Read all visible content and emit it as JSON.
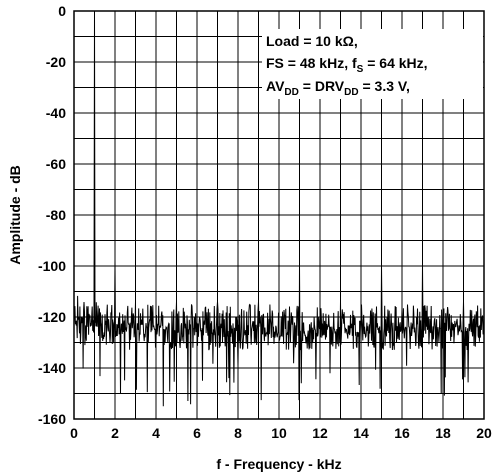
{
  "chart_data": {
    "type": "line",
    "title": "",
    "xlabel": "f - Frequency - kHz",
    "ylabel": "Amplitude - dB",
    "xlim": [
      0,
      20
    ],
    "ylim": [
      -160,
      0
    ],
    "x_ticks": [
      "0",
      "2",
      "4",
      "6",
      "8",
      "10",
      "12",
      "14",
      "16",
      "18",
      "20"
    ],
    "y_ticks": [
      "0",
      "-20",
      "-40",
      "-60",
      "-80",
      "-100",
      "-120",
      "-140",
      "-160"
    ],
    "grid": true,
    "annotation": {
      "line1": "Load = 10 kΩ,",
      "line2_a": "FS = 48 kHz, f",
      "line2_sub": "S",
      "line2_b": " = 64 kHz,",
      "line3_a": "AV",
      "line3_sub1": "DD",
      "line3_b": " = DRV",
      "line3_sub2": "DD",
      "line3_c": " = 3.3 V,"
    },
    "series": [
      {
        "noise_floor_db": -125,
        "noise_band_db": [
          -133,
          -115
        ],
        "noise_dips_db": -155,
        "peaks": [
          {
            "x": 1,
            "y": 0
          },
          {
            "x": 2,
            "y": -98
          },
          {
            "x": 3,
            "y": -114
          },
          {
            "x": 5,
            "y": -114
          },
          {
            "x": 7,
            "y": -114
          },
          {
            "x": 9,
            "y": -114
          },
          {
            "x": 11,
            "y": -100
          },
          {
            "x": 13,
            "y": -114
          },
          {
            "x": 15,
            "y": -100
          },
          {
            "x": 17,
            "y": -100
          },
          {
            "x": 19,
            "y": -114
          }
        ]
      }
    ],
    "colors": {
      "line": "#000000",
      "grid": "#000000",
      "background": "#ffffff"
    }
  }
}
